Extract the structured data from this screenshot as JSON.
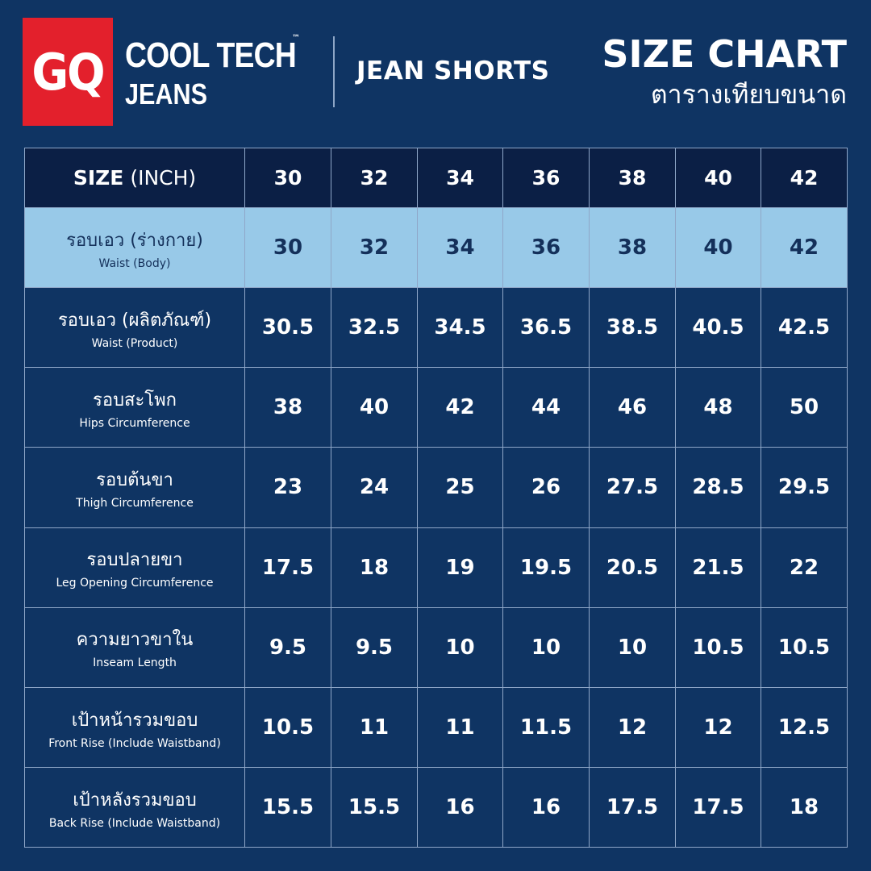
{
  "header": {
    "logo": "GQ",
    "brand": "COOL TECH",
    "trademark": "™",
    "line": "JEANS",
    "product": "JEAN SHORTS",
    "title": "SIZE CHART",
    "subtitle": "ตารางเทียบขนาด"
  },
  "table": {
    "header": {
      "label_bold": "SIZE",
      "label_unit": "(INCH)",
      "sizes": [
        30,
        32,
        34,
        36,
        38,
        40,
        42
      ]
    },
    "rows": [
      {
        "thai": "รอบเอว (ร่างกาย)",
        "english": "Waist (Body)",
        "values": [
          30,
          32,
          34,
          36,
          38,
          40,
          42
        ]
      },
      {
        "thai": "รอบเอว (ผลิตภัณฑ์)",
        "english": "Waist (Product)",
        "values": [
          30.5,
          32.5,
          34.5,
          36.5,
          38.5,
          40.5,
          42.5
        ]
      },
      {
        "thai": "รอบสะโพก",
        "english": "Hips Circumference",
        "values": [
          38,
          40,
          42,
          44,
          46,
          48,
          50
        ]
      },
      {
        "thai": "รอบต้นขา",
        "english": "Thigh Circumference",
        "values": [
          23,
          24,
          25,
          26,
          27.5,
          28.5,
          29.5
        ]
      },
      {
        "thai": "รอบปลายขา",
        "english": "Leg Opening Circumference",
        "values": [
          17.5,
          18,
          19,
          19.5,
          20.5,
          21.5,
          22
        ]
      },
      {
        "thai": "ความยาวขาใน",
        "english": "Inseam Length",
        "values": [
          9.5,
          9.5,
          10,
          10,
          10,
          10.5,
          10.5
        ]
      },
      {
        "thai": "เป้าหน้ารวมขอบ",
        "english": "Front Rise (Include Waistband)",
        "values": [
          10.5,
          11,
          11,
          11.5,
          12,
          12,
          12.5
        ]
      },
      {
        "thai": "เป้าหลังรวมขอบ",
        "english": "Back Rise (Include Waistband)",
        "values": [
          15.5,
          15.5,
          16,
          16,
          17.5,
          17.5,
          18
        ]
      }
    ]
  }
}
